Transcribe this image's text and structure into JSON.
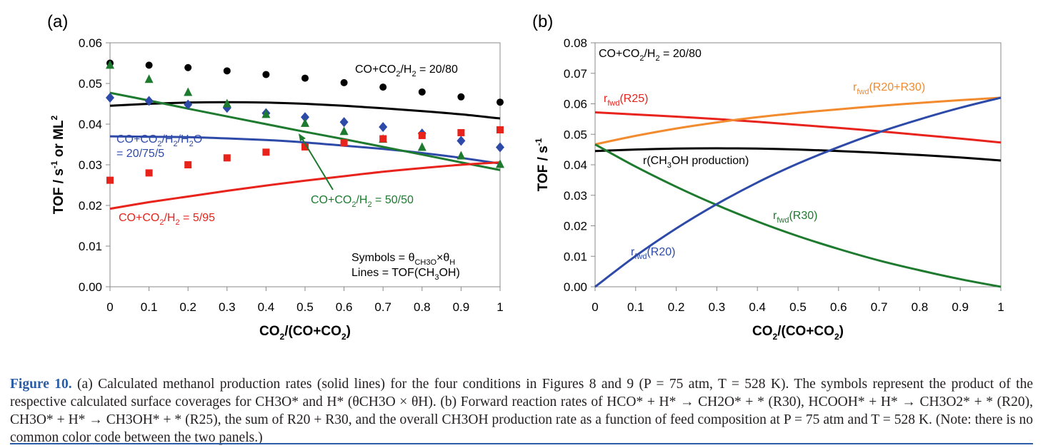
{
  "chart_data": [
    {
      "panel_label": "(a)",
      "type": "scatter",
      "xlabel": "CO2/(CO+CO2)",
      "ylabel": "TOF / s-1 or ML2",
      "xlim": [
        0,
        1
      ],
      "ylim": [
        0,
        0.06
      ],
      "xticks": [
        "0",
        "0.1",
        "0.2",
        "0.3",
        "0.4",
        "0.5",
        "0.6",
        "0.7",
        "0.8",
        "0.9",
        "1"
      ],
      "yticks": [
        "0.00",
        "0.01",
        "0.02",
        "0.03",
        "0.04",
        "0.05",
        "0.06"
      ],
      "grid": false,
      "x": [
        0,
        0.1,
        0.2,
        0.3,
        0.4,
        0.5,
        0.6,
        0.7,
        0.8,
        0.9,
        1
      ],
      "series": [
        {
          "name": "CO+CO2/H2 = 20/80",
          "color": "#000000",
          "marker": "circle",
          "symbols": [
            0.055,
            0.0545,
            0.0539,
            0.0531,
            0.0522,
            0.0513,
            0.0502,
            0.0491,
            0.0479,
            0.0467,
            0.0454
          ],
          "line": [
            0.0445,
            0.045,
            0.0453,
            0.0454,
            0.0453,
            0.045,
            0.0445,
            0.0439,
            0.0432,
            0.0424,
            0.0414
          ]
        },
        {
          "name": "CO+CO2/H2/H2O = 20/75/5",
          "color": "#2e4aa8",
          "marker": "diamond",
          "symbols": [
            0.0465,
            0.0457,
            0.0448,
            0.044,
            0.0427,
            0.0417,
            0.0405,
            0.0393,
            0.0377,
            0.0359,
            0.0343
          ],
          "line": [
            0.037,
            0.0369,
            0.0368,
            0.0365,
            0.0361,
            0.0355,
            0.0347,
            0.0339,
            0.0329,
            0.0317,
            0.0303
          ]
        },
        {
          "name": "CO+CO2/H2 = 50/50",
          "color": "#1e7a2f",
          "marker": "triangle",
          "symbols": [
            0.0545,
            0.051,
            0.0478,
            0.045,
            0.0424,
            0.0402,
            0.0382,
            0.0363,
            0.0343,
            0.0322,
            0.0301
          ],
          "line": [
            0.0477,
            0.0458,
            0.0438,
            0.0419,
            0.04,
            0.0381,
            0.0363,
            0.0344,
            0.0325,
            0.0306,
            0.0287
          ]
        },
        {
          "name": "CO+CO2/H2 = 5/95",
          "color": "#e8231c",
          "marker": "square",
          "symbols": [
            0.0262,
            0.028,
            0.03,
            0.0317,
            0.0331,
            0.0344,
            0.0354,
            0.0364,
            0.0372,
            0.0379,
            0.0386
          ],
          "line": [
            0.0192,
            0.0208,
            0.0222,
            0.0236,
            0.0249,
            0.0261,
            0.0272,
            0.0283,
            0.0292,
            0.03,
            0.0306
          ]
        }
      ],
      "annotations": {
        "black": "CO+CO2/H2 = 20/80",
        "blue_1": "CO+CO2/H2/H2O",
        "blue_2": "= 20/75/5",
        "green": "CO+CO2/H2 = 50/50",
        "red": "CO+CO2/H2 = 5/95",
        "note_symbols": "Symbols = θCH3O×θH",
        "note_lines": "Lines      = TOF(CH3OH)"
      }
    },
    {
      "panel_label": "(b)",
      "type": "line",
      "xlabel": "CO2/(CO+CO2)",
      "ylabel": "TOF / s-1",
      "xlim": [
        0,
        1
      ],
      "ylim": [
        0,
        0.08
      ],
      "xticks": [
        "0",
        "0.1",
        "0.2",
        "0.3",
        "0.4",
        "0.5",
        "0.6",
        "0.7",
        "0.8",
        "0.9",
        "1"
      ],
      "yticks": [
        "0.00",
        "0.01",
        "0.02",
        "0.03",
        "0.04",
        "0.05",
        "0.06",
        "0.07",
        "0.08"
      ],
      "grid": false,
      "x": [
        0,
        0.1,
        0.2,
        0.3,
        0.4,
        0.5,
        0.6,
        0.7,
        0.8,
        0.9,
        1
      ],
      "series": [
        {
          "name": "rfwd(R25)",
          "color": "#e8231c",
          "values": [
            0.0572,
            0.0565,
            0.0558,
            0.055,
            0.0541,
            0.0531,
            0.0521,
            0.051,
            0.0498,
            0.0486,
            0.0473
          ]
        },
        {
          "name": "rfwd(R20+R30)",
          "color": "#f28a2e",
          "values": [
            0.0467,
            0.0495,
            0.0519,
            0.0539,
            0.0556,
            0.057,
            0.0582,
            0.0593,
            0.0603,
            0.0612,
            0.062
          ]
        },
        {
          "name": "r(CH3OH production)",
          "color": "#000000",
          "values": [
            0.0445,
            0.045,
            0.0453,
            0.0454,
            0.0453,
            0.045,
            0.0445,
            0.0439,
            0.0432,
            0.0424,
            0.0414
          ]
        },
        {
          "name": "rfwd(R30)",
          "color": "#1e7a2f",
          "values": [
            0.0467,
            0.0394,
            0.0328,
            0.0268,
            0.0214,
            0.0166,
            0.0124,
            0.0086,
            0.0054,
            0.0025,
            0.0
          ]
        },
        {
          "name": "rfwd(R20)",
          "color": "#2e4aa8",
          "values": [
            0.0,
            0.0101,
            0.0191,
            0.0271,
            0.0342,
            0.0404,
            0.0458,
            0.0507,
            0.0549,
            0.0587,
            0.062
          ]
        }
      ],
      "annotations": {
        "condition": "CO+CO2/H2 = 20/80"
      }
    }
  ],
  "caption": {
    "label": "Figure 10.",
    "text": "(a) Calculated methanol production rates (solid lines) for the four conditions in Figures 8 and 9 (P = 75 atm, T = 528 K). The symbols represent the product of the respective calculated surface coverages for CH3O* and H* (θCH3O × θH). (b) Forward reaction rates of HCO* + H* → CH2O* + * (R30), HCOOH* + H* → CH3O2* + * (R20), CH3O* + H* → CH3OH* + * (R25), the sum of R20 + R30, and the overall CH3OH production rate as a function of feed composition at P = 75 atm and T = 528 K. (Note: there is no common color code between the two panels.)"
  }
}
